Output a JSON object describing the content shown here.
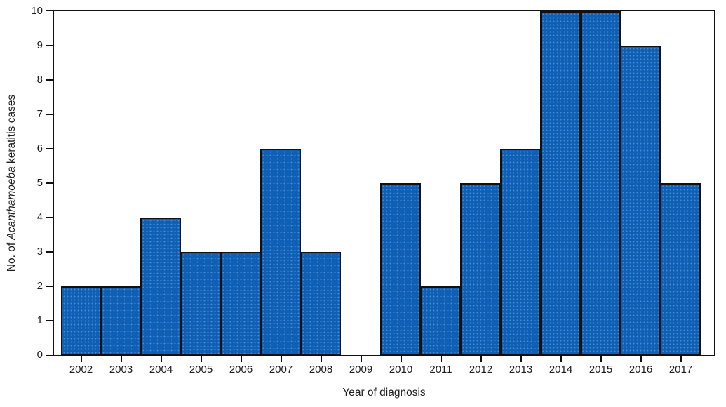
{
  "figure": {
    "xlabel": "Year of diagnosis",
    "ylabel_parts": {
      "prefix": "No. of ",
      "italic": "Acanthamoeba",
      "suffix": " keratitis cases"
    }
  },
  "chart_data": {
    "type": "bar",
    "title": "",
    "categories": [
      "2002",
      "2003",
      "2004",
      "2005",
      "2006",
      "2007",
      "2008",
      "2009",
      "2010",
      "2011",
      "2012",
      "2013",
      "2014",
      "2015",
      "2016",
      "2017"
    ],
    "values": [
      2,
      2,
      4,
      3,
      3,
      6,
      3,
      0,
      5,
      2,
      5,
      6,
      10,
      10,
      9,
      5
    ],
    "xlabel": "Year of diagnosis",
    "ylabel": "No. of Acanthamoeba keratitis cases",
    "ylim": [
      0,
      10
    ],
    "yticks": [
      0,
      1,
      2,
      3,
      4,
      5,
      6,
      7,
      8,
      9,
      10
    ],
    "grid": false,
    "legend": "none",
    "bar_fill_color": "#0f5fb4",
    "bar_texture_dot_color": "#6eafeb",
    "bar_border_color": "#111111",
    "axis_color": "#111111",
    "text_color": "#1d1d1f"
  }
}
